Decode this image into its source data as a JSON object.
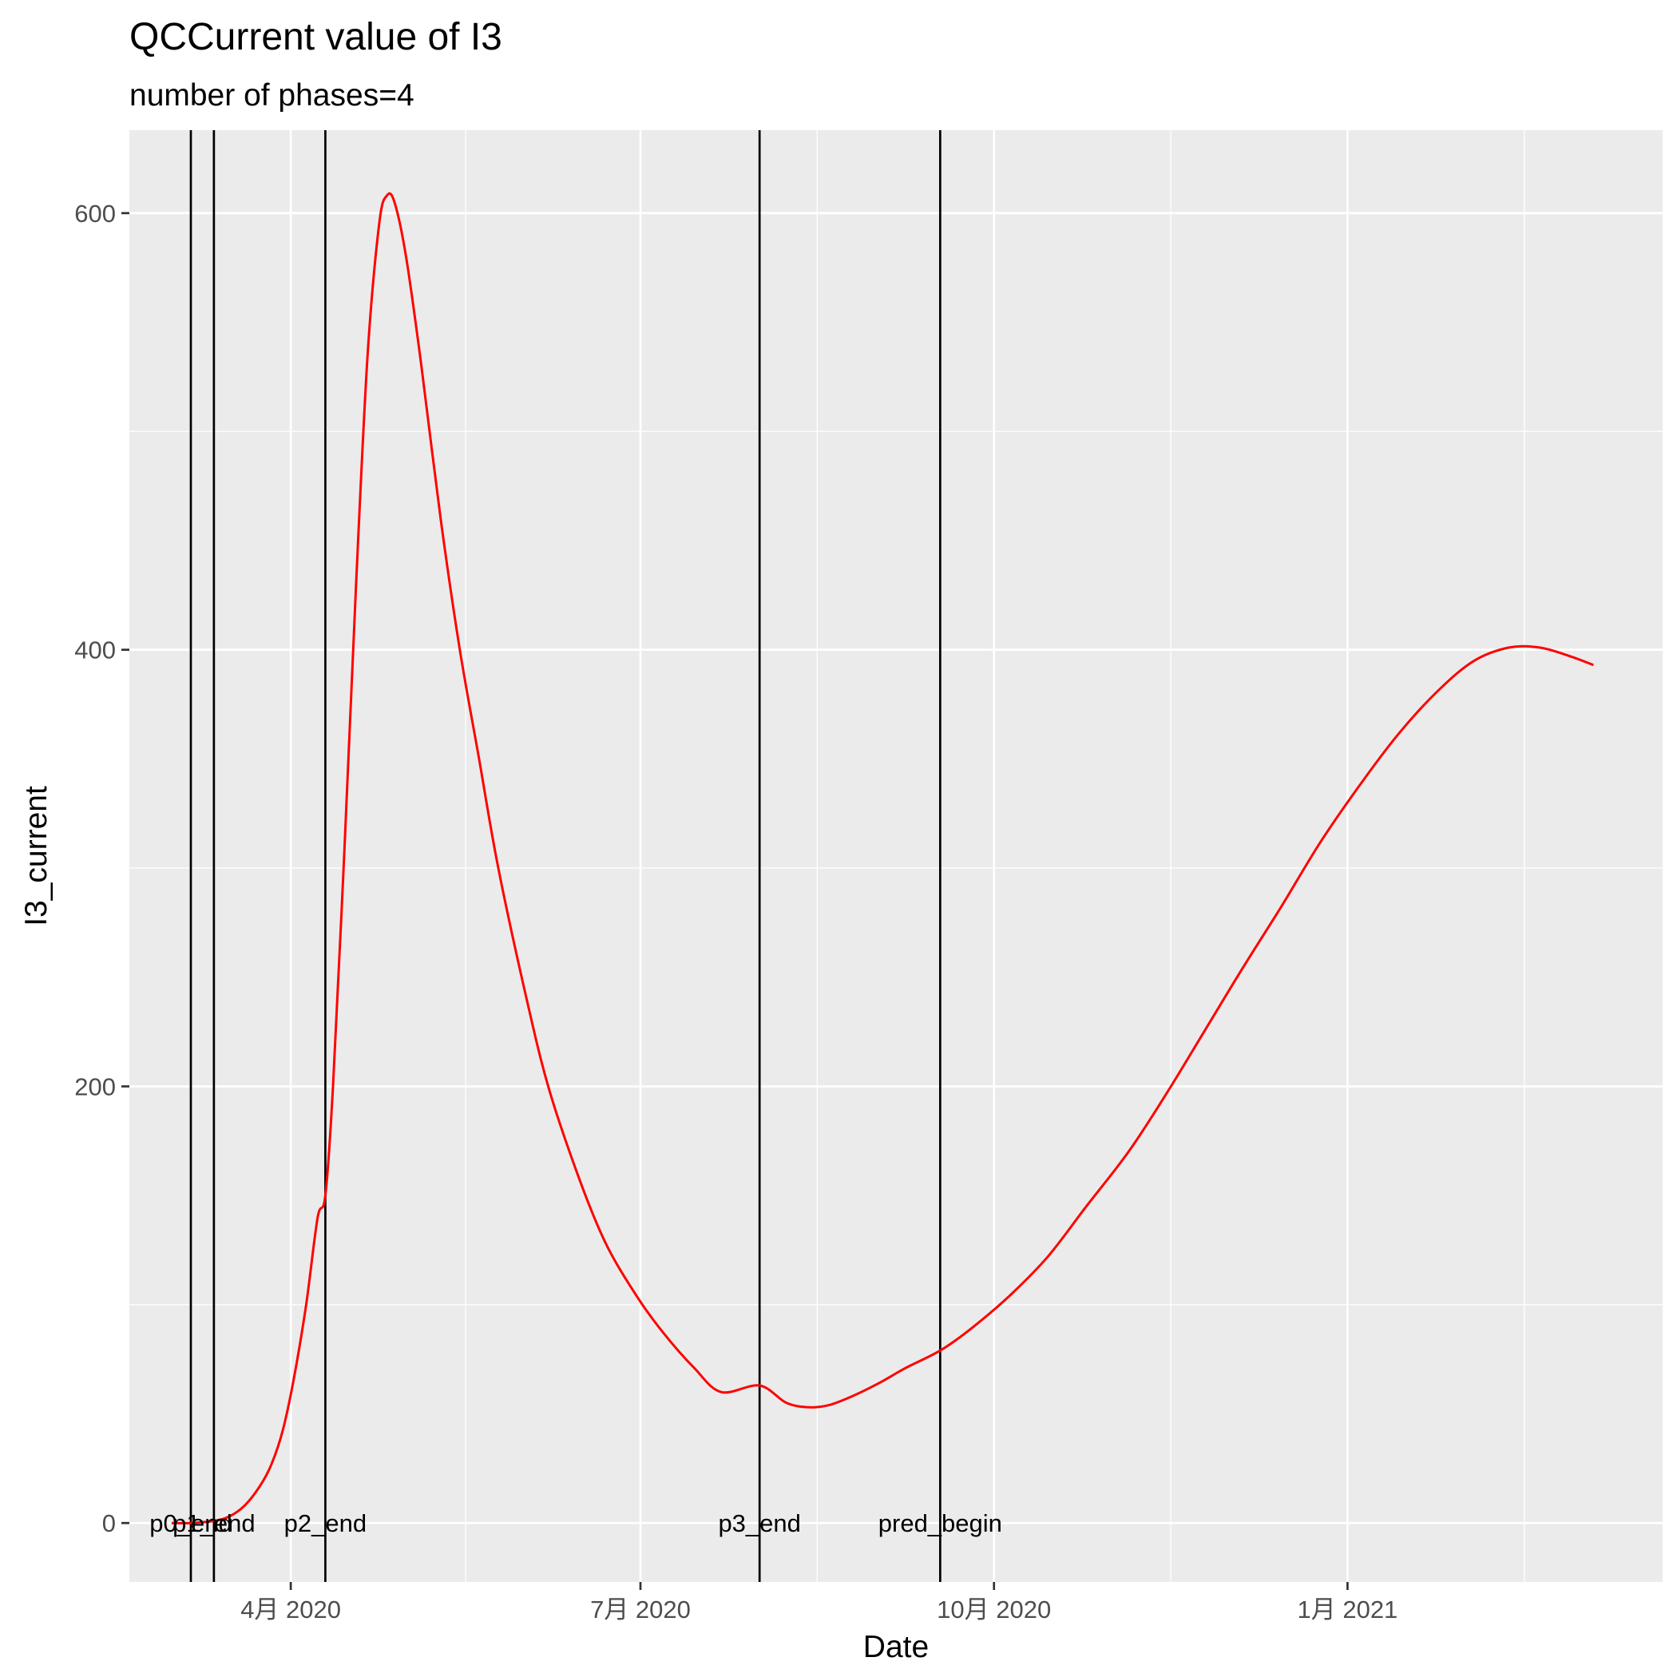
{
  "chart_data": {
    "type": "line",
    "title": "QCCurrent value of I3",
    "subtitle": "number of phases=4",
    "xlabel": "Date",
    "ylabel": "I3_current",
    "x_type": "date",
    "xlim": [
      "2020-02-19",
      "2021-03-24"
    ],
    "ylim": [
      -27,
      638
    ],
    "grid": true,
    "x_ticks": [
      {
        "date": "2020-04-01",
        "label": "4月 2020"
      },
      {
        "date": "2020-07-01",
        "label": "7月 2020"
      },
      {
        "date": "2020-10-01",
        "label": "10月 2020"
      },
      {
        "date": "2021-01-01",
        "label": "1月 2021"
      }
    ],
    "y_ticks": [
      0,
      200,
      400,
      600
    ],
    "vlines": [
      {
        "date": "2020-03-06",
        "label": "p0_end"
      },
      {
        "date": "2020-03-12",
        "label": "p1_end"
      },
      {
        "date": "2020-04-10",
        "label": "p2_end"
      },
      {
        "date": "2020-08-01",
        "label": "p3_end"
      },
      {
        "date": "2020-09-17",
        "label": "pred_begin"
      }
    ],
    "series": [
      {
        "color": "#ff0000",
        "points": [
          [
            "2020-03-01",
            0
          ],
          [
            "2020-03-06",
            0
          ],
          [
            "2020-03-12",
            1
          ],
          [
            "2020-03-16",
            3
          ],
          [
            "2020-03-20",
            8
          ],
          [
            "2020-03-24",
            17
          ],
          [
            "2020-03-27",
            27
          ],
          [
            "2020-03-30",
            43
          ],
          [
            "2020-04-02",
            68
          ],
          [
            "2020-04-05",
            100
          ],
          [
            "2020-04-08",
            140
          ],
          [
            "2020-04-10",
            150
          ],
          [
            "2020-04-12",
            200
          ],
          [
            "2020-04-15",
            310
          ],
          [
            "2020-04-18",
            430
          ],
          [
            "2020-04-21",
            535
          ],
          [
            "2020-04-24",
            595
          ],
          [
            "2020-04-26",
            608
          ],
          [
            "2020-04-28",
            605
          ],
          [
            "2020-05-01",
            580
          ],
          [
            "2020-05-05",
            530
          ],
          [
            "2020-05-10",
            460
          ],
          [
            "2020-05-15",
            400
          ],
          [
            "2020-05-20",
            350
          ],
          [
            "2020-05-25",
            300
          ],
          [
            "2020-06-01",
            243
          ],
          [
            "2020-06-07",
            200
          ],
          [
            "2020-06-15",
            158
          ],
          [
            "2020-06-22",
            128
          ],
          [
            "2020-06-30",
            104
          ],
          [
            "2020-07-07",
            87
          ],
          [
            "2020-07-15",
            71
          ],
          [
            "2020-07-22",
            60
          ],
          [
            "2020-08-01",
            63
          ],
          [
            "2020-08-08",
            55
          ],
          [
            "2020-08-14",
            53
          ],
          [
            "2020-08-19",
            54
          ],
          [
            "2020-08-25",
            58
          ],
          [
            "2020-09-01",
            64
          ],
          [
            "2020-09-08",
            71
          ],
          [
            "2020-09-17",
            79
          ],
          [
            "2020-09-25",
            89
          ],
          [
            "2020-10-05",
            104
          ],
          [
            "2020-10-15",
            122
          ],
          [
            "2020-10-25",
            145
          ],
          [
            "2020-11-05",
            170
          ],
          [
            "2020-11-15",
            197
          ],
          [
            "2020-11-25",
            226
          ],
          [
            "2020-12-05",
            255
          ],
          [
            "2020-12-15",
            283
          ],
          [
            "2020-12-25",
            312
          ],
          [
            "2021-01-05",
            340
          ],
          [
            "2021-01-15",
            363
          ],
          [
            "2021-01-25",
            382
          ],
          [
            "2021-02-03",
            395
          ],
          [
            "2021-02-12",
            401
          ],
          [
            "2021-02-20",
            401
          ],
          [
            "2021-02-28",
            397
          ],
          [
            "2021-03-06",
            393
          ]
        ]
      }
    ]
  }
}
